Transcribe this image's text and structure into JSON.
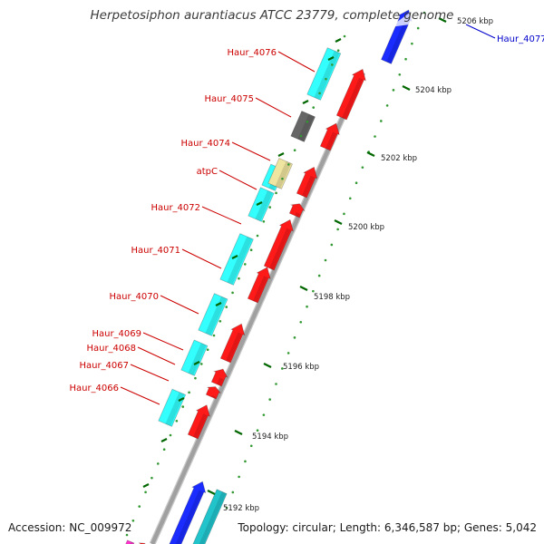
{
  "title": "Herpetosiphon aurantiacus ATCC 23779, complete genome",
  "footer": {
    "accession": "Accession: NC_009972",
    "summary": "Topology: circular; Length: 6,346,587 bp; Genes: 5,042"
  },
  "colors": {
    "background": "#ffffff",
    "backbone": "#a0a0a0",
    "forward_gene": "#33ffff",
    "reverse_gene": "#ff1a1a",
    "atp_gene": "#efe4a0",
    "other_gene": "#666666",
    "blue_gene": "#1a2cff",
    "teal_gene": "#22c4cc",
    "label_red": "#cc0000",
    "label_blue": "#0000cc",
    "tick_major": "#006600",
    "tick_minor": "#339933"
  },
  "scale_labels": [
    "5192 kbp",
    "5194 kbp",
    "5196 kbp",
    "5198 kbp",
    "5200 kbp",
    "5202 kbp",
    "5204 kbp",
    "5206 kbp"
  ],
  "gene_labels": [
    {
      "text": "Haur_4076",
      "color": "red"
    },
    {
      "text": "Haur_4075",
      "color": "red"
    },
    {
      "text": "Haur_4074",
      "color": "red"
    },
    {
      "text": "atpC",
      "color": "red"
    },
    {
      "text": "Haur_4072",
      "color": "red"
    },
    {
      "text": "Haur_4071",
      "color": "red"
    },
    {
      "text": "Haur_4070",
      "color": "red"
    },
    {
      "text": "Haur_4069",
      "color": "red"
    },
    {
      "text": "Haur_4068",
      "color": "red"
    },
    {
      "text": "Haur_4067",
      "color": "red"
    },
    {
      "text": "Haur_4066",
      "color": "red"
    },
    {
      "text": "Haur_4077",
      "color": "blue"
    }
  ]
}
